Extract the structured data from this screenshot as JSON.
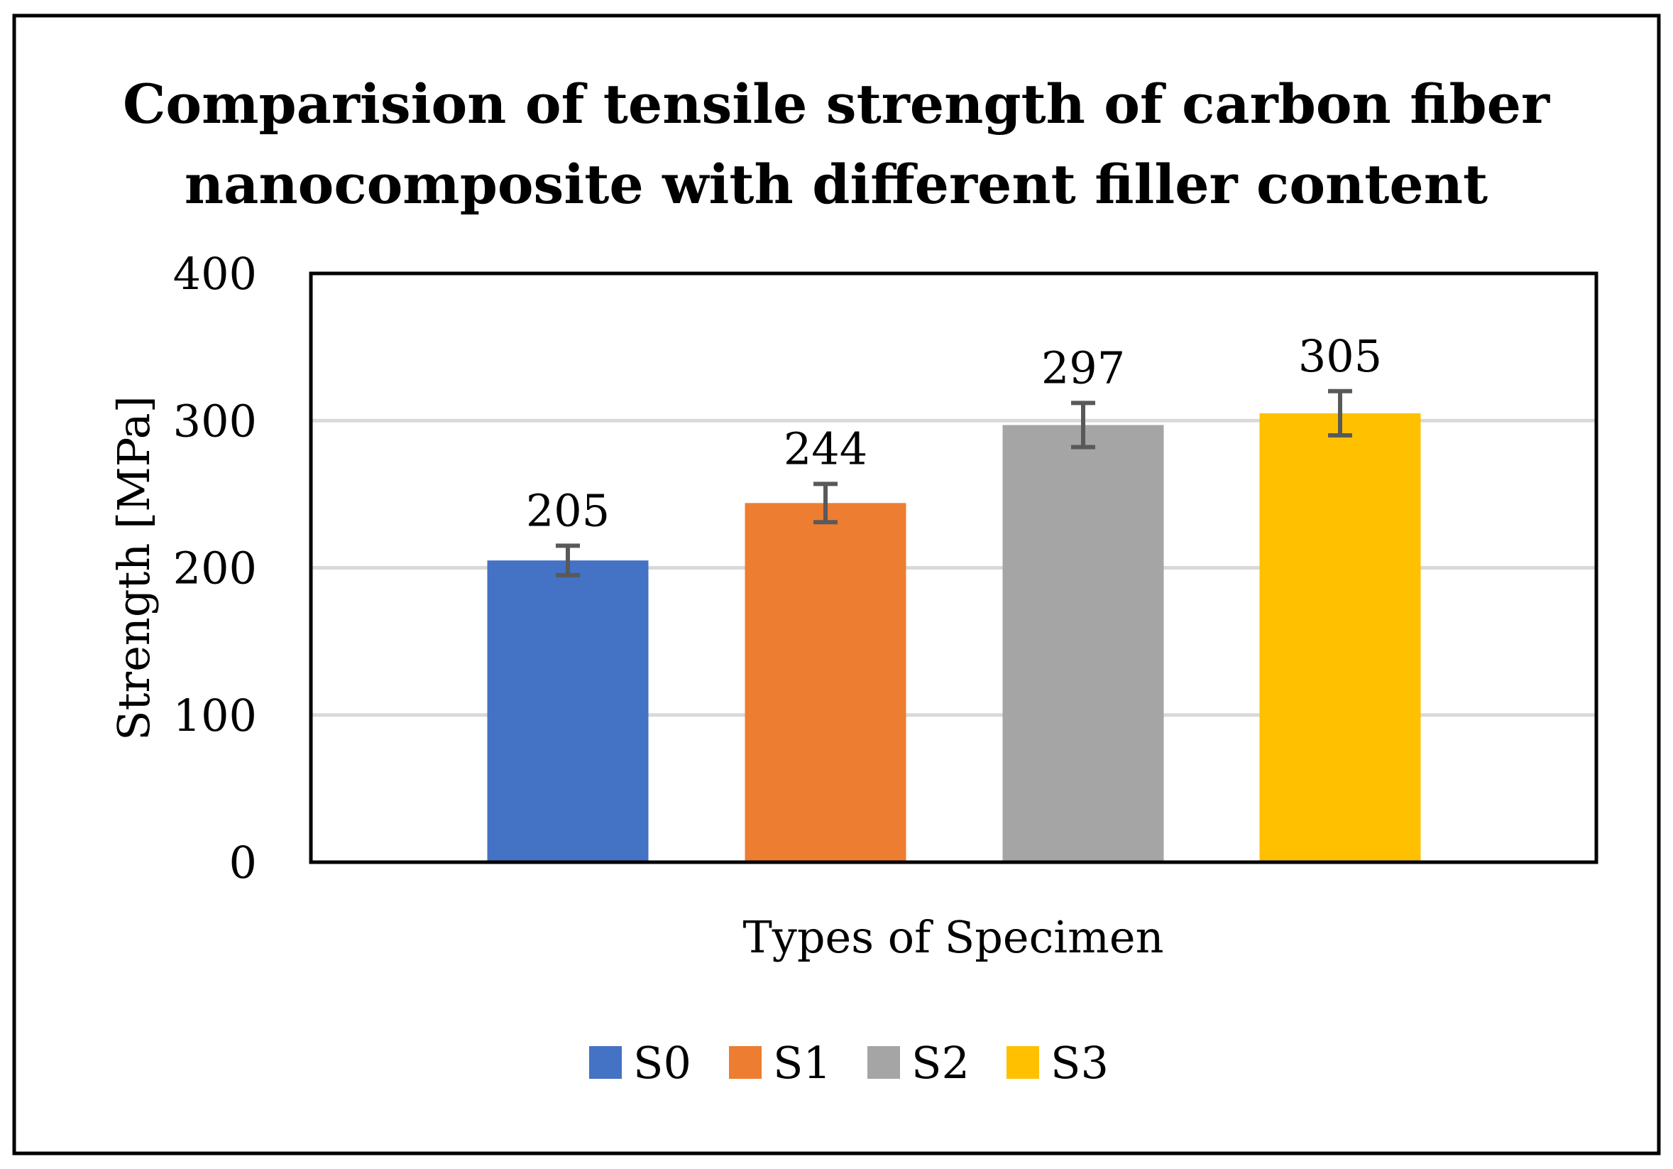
{
  "chart_data": {
    "type": "bar",
    "title_lines": [
      "Comparision of tensile strength of carbon fiber",
      "nanocomposite with different filler content"
    ],
    "xlabel": "Types of Specimen",
    "ylabel": "Strength [MPa]",
    "ylim": [
      0,
      400
    ],
    "yticks": [
      0,
      100,
      200,
      300,
      400
    ],
    "grid": true,
    "legend_position": "bottom",
    "series": [
      {
        "name": "S0",
        "value": 205,
        "error": 10,
        "color": "#4472C4"
      },
      {
        "name": "S1",
        "value": 244,
        "error": 13,
        "color": "#ED7D31"
      },
      {
        "name": "S2",
        "value": 297,
        "error": 15,
        "color": "#A5A5A5"
      },
      {
        "name": "S3",
        "value": 305,
        "error": 15,
        "color": "#FFC000"
      }
    ],
    "colors": {
      "grid": "#D9D9D9",
      "error_bar": "#595959",
      "axis": "#000000",
      "text": "#000000"
    }
  }
}
